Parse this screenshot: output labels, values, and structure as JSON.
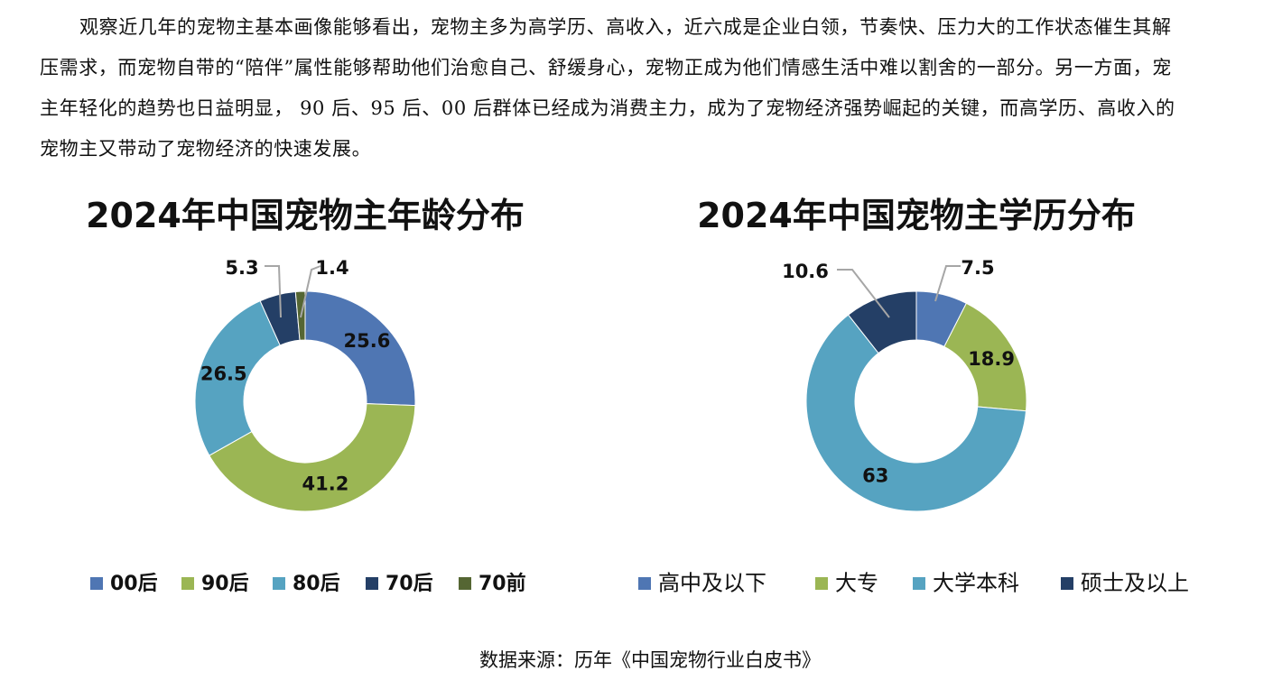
{
  "intro": {
    "paragraph": "观察近几年的宠物主基本画像能够看出，宠物主多为高学历、高收入，近六成是企业白领，节奏快、压力大的工作状态催生其解压需求，而宠物自带的“陪伴”属性能够帮助他们治愈自己、舒缓身心，宠物正成为他们情感生活中难以割舍的一部分。另一方面，宠主年轻化的趋势也日益明显， 90 后、95 后、00 后群体已经成为消费主力，成为了宠物经济强势崛起的关键，而高学历、高收入的宠物主又带动了宠物经济的快速发展。"
  },
  "chart_data": [
    {
      "type": "pie",
      "donut": true,
      "title": "2024年中国宠物主年龄分布",
      "categories": [
        "00后",
        "90后",
        "80后",
        "70后",
        "70前"
      ],
      "values": [
        25.6,
        41.2,
        26.5,
        5.3,
        1.4
      ],
      "labels": [
        "25.6",
        "41.2",
        "26.5",
        "5.3",
        "1.4"
      ],
      "colors": [
        "#4f76b3",
        "#9bb654",
        "#56a3c1",
        "#243f66",
        "#556633"
      ],
      "legend": "bottom"
    },
    {
      "type": "pie",
      "donut": true,
      "title": "2024年中国宠物主学历分布",
      "categories": [
        "高中及以下",
        "大专",
        "大学本科",
        "硕士及以上"
      ],
      "values": [
        7.5,
        18.9,
        63,
        10.6
      ],
      "labels": [
        "7.5",
        "18.9",
        "63",
        "10.6"
      ],
      "colors": [
        "#4f76b3",
        "#9bb654",
        "#56a3c1",
        "#243f66"
      ],
      "legend": "bottom"
    }
  ],
  "source": {
    "label": "数据来源：",
    "text": "历年《中国宠物行业白皮书》"
  }
}
